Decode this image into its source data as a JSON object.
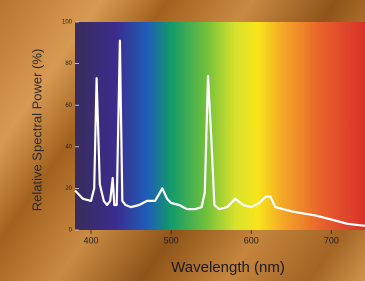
{
  "chart_data": {
    "type": "line",
    "x_label": "Wavelength (nm)",
    "y_label": "Relative Spectral Power (%)",
    "x": [
      380,
      390,
      400,
      404,
      407,
      411,
      416,
      420,
      424,
      427,
      429,
      432,
      436,
      439,
      443,
      450,
      460,
      470,
      480,
      489,
      495,
      500,
      510,
      520,
      530,
      538,
      542,
      546,
      550,
      554,
      560,
      570,
      580,
      590,
      600,
      610,
      618,
      624,
      630,
      640,
      650,
      665,
      680,
      700,
      720,
      742
    ],
    "values": [
      19,
      15,
      14,
      20,
      73,
      22,
      14,
      12,
      14,
      25,
      12,
      12,
      91,
      14,
      12,
      11,
      12,
      14,
      14,
      20,
      15,
      13,
      12,
      10,
      10,
      11,
      18,
      74,
      45,
      12,
      10,
      11,
      15,
      12,
      11,
      13,
      16,
      16,
      11,
      10,
      9,
      8,
      7,
      5,
      3,
      2
    ],
    "color": "#ffffff",
    "xlim": [
      380,
      742
    ],
    "ylim": [
      0,
      100
    ],
    "xticks": [
      400,
      500,
      600,
      700
    ],
    "yticks": [
      0,
      20,
      40,
      60,
      80,
      100
    ]
  }
}
